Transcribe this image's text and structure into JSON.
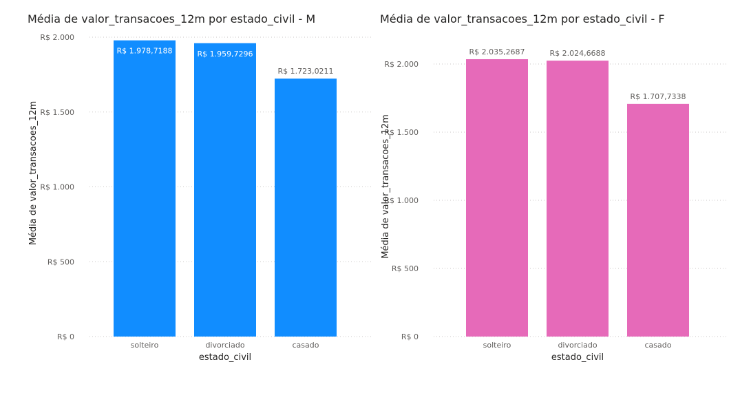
{
  "chart_data": [
    {
      "type": "bar",
      "title": "Média de valor_transacoes_12m por estado_civil - M",
      "xlabel": "estado_civil",
      "ylabel": "Média de valor_transacoes_12m",
      "categories": [
        "solteiro",
        "divorciado",
        "casado"
      ],
      "values": [
        1978.7188,
        1959.7296,
        1723.0211
      ],
      "data_labels": [
        "R$ 1.978,7188",
        "R$ 1.959,7296",
        "R$ 1.723,0211"
      ],
      "data_label_position": [
        "inside",
        "inside",
        "outside"
      ],
      "ylim": [
        0,
        2000
      ],
      "yticks": [
        0,
        500,
        1000,
        1500,
        2000
      ],
      "ytick_labels": [
        "R$ 0",
        "R$ 500",
        "R$ 1.000",
        "R$ 1.500",
        "R$ 2.000"
      ],
      "grid": true,
      "color": "#118DFF"
    },
    {
      "type": "bar",
      "title": "Média de valor_transacoes_12m por estado_civil - F",
      "xlabel": "estado_civil",
      "ylabel": "Média de valor_transacoes_12m",
      "categories": [
        "solteiro",
        "divorciado",
        "casado"
      ],
      "values": [
        2035.2687,
        2024.6688,
        1707.7338
      ],
      "data_labels": [
        "R$ 2.035,2687",
        "R$ 2.024,6688",
        "R$ 1.707,7338"
      ],
      "data_label_position": [
        "outside",
        "outside",
        "outside"
      ],
      "ylim": [
        0,
        2000
      ],
      "yticks": [
        0,
        500,
        1000,
        1500,
        2000
      ],
      "ytick_labels": [
        "R$ 0",
        "R$ 500",
        "R$ 1.000",
        "R$ 1.500",
        "R$ 2.000"
      ],
      "grid": true,
      "color": "#E66AB9"
    }
  ]
}
